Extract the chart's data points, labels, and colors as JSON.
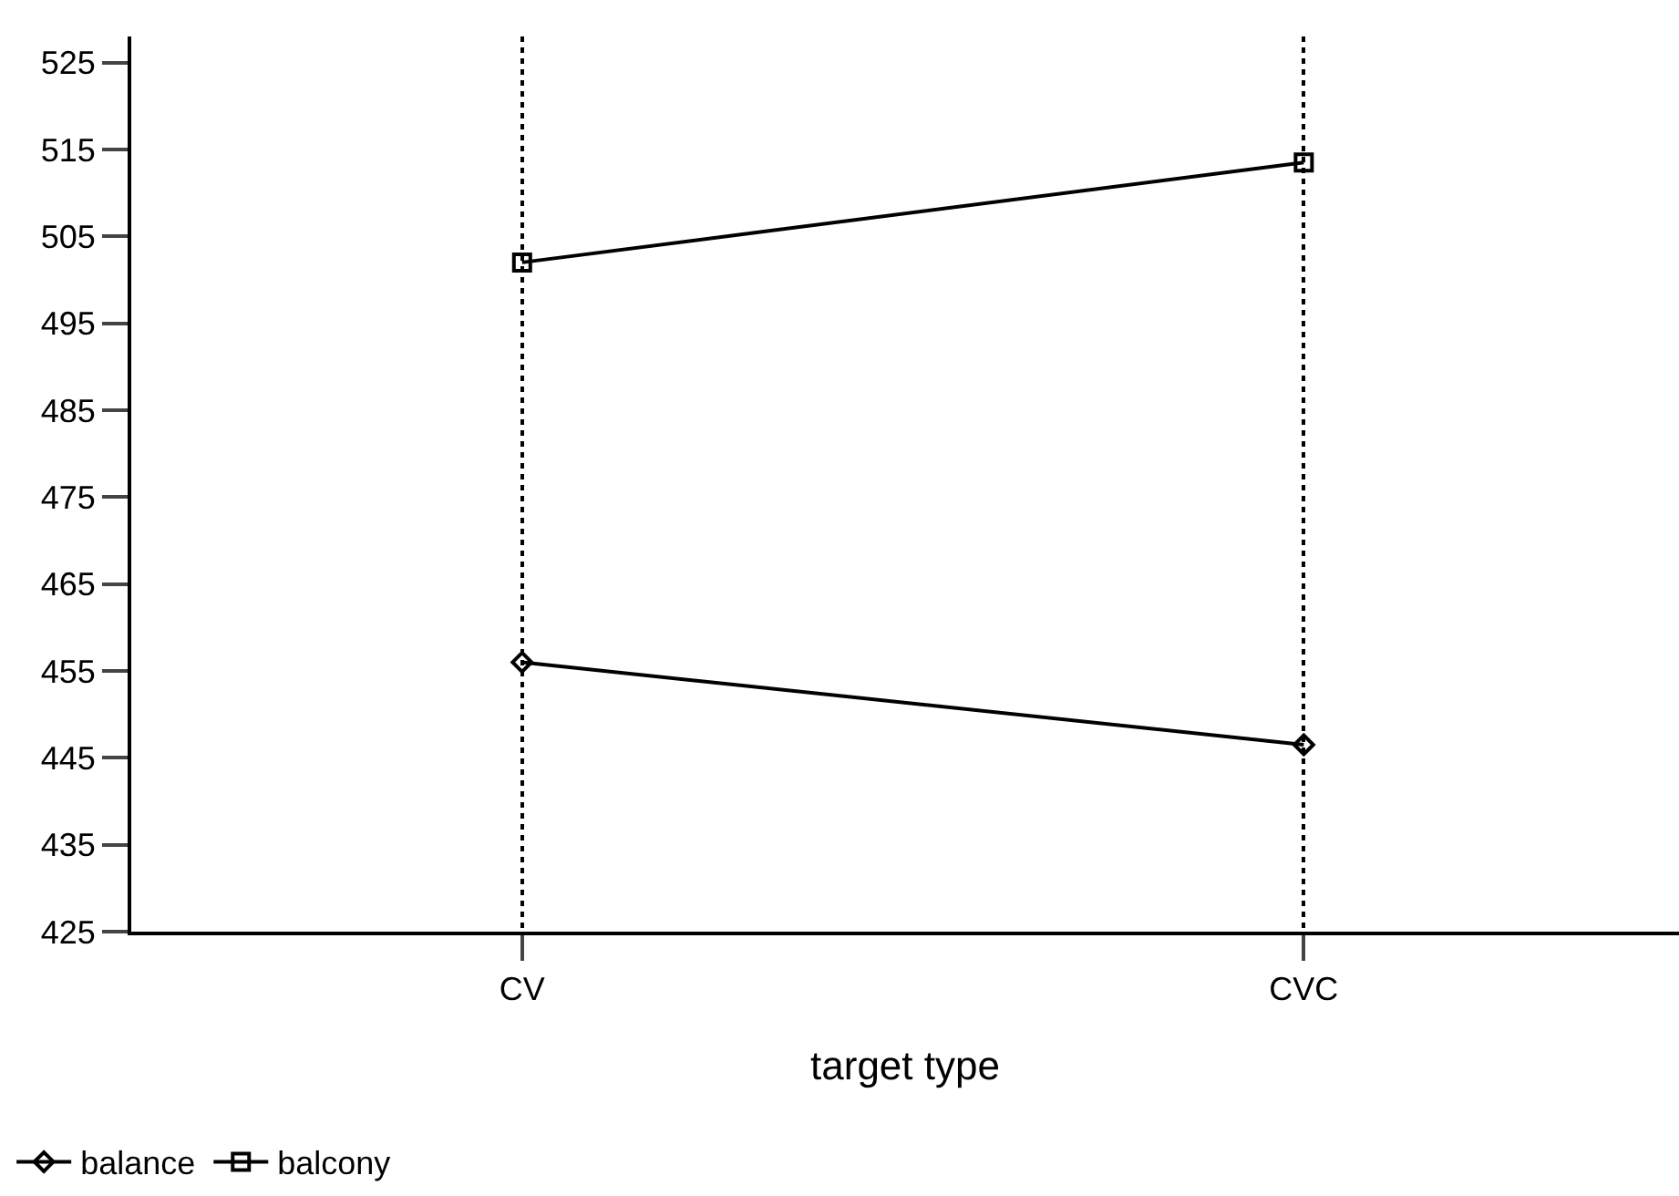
{
  "chart_data": {
    "type": "line",
    "xlabel": "target type",
    "categories": [
      "CV",
      "CVC"
    ],
    "series": [
      {
        "name": "balance",
        "color": "#000000",
        "marker": "diamond",
        "values": [
          456,
          446.5
        ]
      },
      {
        "name": "balcony",
        "color": "#000000",
        "marker": "square",
        "values": [
          502,
          513.5
        ]
      }
    ],
    "ylim": [
      425,
      528
    ],
    "yticks": [
      425,
      435,
      445,
      455,
      465,
      475,
      485,
      495,
      505,
      515,
      525
    ],
    "grid": "x",
    "legend": "bottom left",
    "line_style": "solid"
  }
}
